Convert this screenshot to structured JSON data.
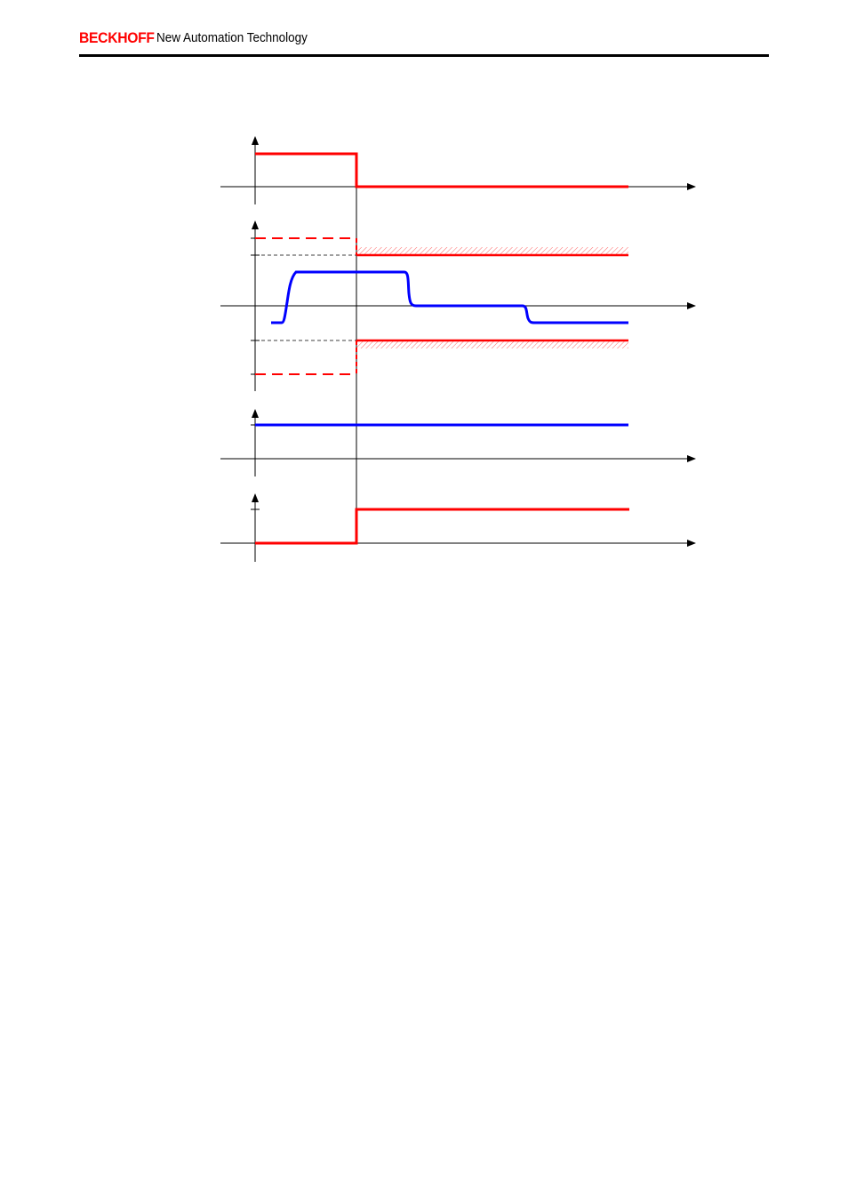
{
  "header": {
    "brand": "BECKHOFF",
    "tagline": "New Automation Technology"
  },
  "colors": {
    "brand": "#ff0000",
    "signal_red": "#ff0000",
    "signal_blue": "#0000ff",
    "axis": "#000000",
    "hatch": "#ff0000"
  },
  "diagram": {
    "description_visible_text": "",
    "traces": [
      {
        "name": "trace-1",
        "color": "red",
        "style": "solid"
      },
      {
        "name": "trace-2-limits",
        "color": "red",
        "style": "dashed-then-solid"
      },
      {
        "name": "trace-2-signal",
        "color": "blue",
        "style": "solid"
      },
      {
        "name": "trace-3",
        "color": "blue",
        "style": "solid"
      },
      {
        "name": "trace-4",
        "color": "red",
        "style": "solid"
      }
    ]
  }
}
